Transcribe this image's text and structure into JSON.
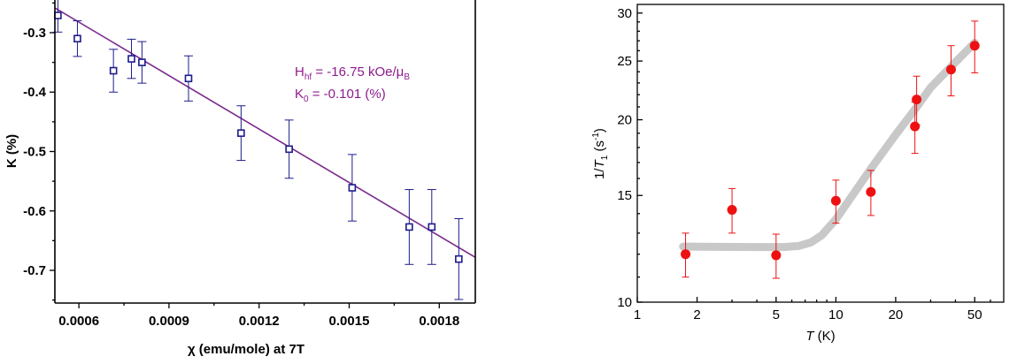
{
  "chart_data": [
    {
      "type": "scatter",
      "title": "",
      "xlabel": "χ (emu/mole) at 7T",
      "ylabel": "K (%)",
      "xlim": [
        0.00052,
        0.00192
      ],
      "ylim": [
        -0.755,
        -0.245
      ],
      "xticks": [
        0.0006,
        0.0009,
        0.0012,
        0.0015,
        0.0018
      ],
      "xtick_labels": [
        "0.0006",
        "0.0009",
        "0.0012",
        "0.0015",
        "0.0018"
      ],
      "yticks": [
        -0.3,
        -0.4,
        -0.5,
        -0.6,
        -0.7
      ],
      "ytick_labels": [
        "-0.3",
        "-0.4",
        "-0.5",
        "-0.6",
        "-0.7"
      ],
      "grid": false,
      "marker_color": "#1c1c8c",
      "fit_color": "#7a2a8c",
      "series": [
        {
          "x": [
            0.00053,
            0.000595,
            0.000715,
            0.000775,
            0.00081,
            0.000965,
            0.00114,
            0.0013,
            0.00151,
            0.0017,
            0.001775,
            0.001865
          ],
          "y": [
            -0.271,
            -0.31,
            -0.364,
            -0.344,
            -0.35,
            -0.377,
            -0.469,
            -0.496,
            -0.561,
            -0.627,
            -0.627,
            -0.681
          ],
          "yerr": [
            0.028,
            0.03,
            0.036,
            0.033,
            0.035,
            0.038,
            0.046,
            0.049,
            0.056,
            0.063,
            0.063,
            0.068
          ]
        }
      ],
      "fit": {
        "x": [
          0.00052,
          0.00192
        ],
        "y": [
          -0.2582,
          -0.6782
        ]
      },
      "annotations": [
        {
          "parts": [
            "H",
            "hf",
            " = -16.75 kOe/μ",
            "B"
          ]
        },
        {
          "parts": [
            "K",
            "0",
            " = -0.101 (%)"
          ]
        }
      ]
    },
    {
      "type": "scatter",
      "title": "",
      "xlabel_parts": [
        "T",
        " (K)"
      ],
      "ylabel_parts": [
        "1/",
        "T",
        "1",
        " (s",
        "-1",
        ")"
      ],
      "xscale": "log",
      "yscale": "log",
      "xlim": [
        1,
        70
      ],
      "ylim": [
        10,
        31
      ],
      "xticks": [
        1,
        2,
        5,
        10,
        20,
        50
      ],
      "xtick_labels": [
        "1",
        "2",
        "5",
        "10",
        "20",
        "50"
      ],
      "yticks": [
        10,
        15,
        20,
        25,
        30
      ],
      "ytick_labels": [
        "10",
        "15",
        "20",
        "25",
        "30"
      ],
      "grid": false,
      "marker_color": "#ee1111",
      "curve_color": "#c8c8c8",
      "series": [
        {
          "x": [
            1.75,
            3.0,
            5.0,
            10.0,
            15.0,
            25.0,
            25.5,
            38.0,
            50.0
          ],
          "y": [
            12.0,
            14.2,
            11.95,
            14.7,
            15.2,
            19.5,
            21.6,
            24.2,
            26.5
          ],
          "yerr": [
            1.0,
            1.2,
            1.0,
            1.2,
            1.3,
            1.9,
            2.0,
            2.3,
            2.6
          ]
        }
      ],
      "trend": {
        "x": [
          1.7,
          2.5,
          4.0,
          5.5,
          6.5,
          7.5,
          8.5,
          10,
          15,
          20,
          25,
          30,
          40,
          50
        ],
        "y": [
          12.35,
          12.34,
          12.33,
          12.33,
          12.38,
          12.55,
          12.9,
          13.7,
          16.6,
          18.9,
          20.8,
          22.6,
          24.9,
          26.8
        ]
      }
    }
  ]
}
